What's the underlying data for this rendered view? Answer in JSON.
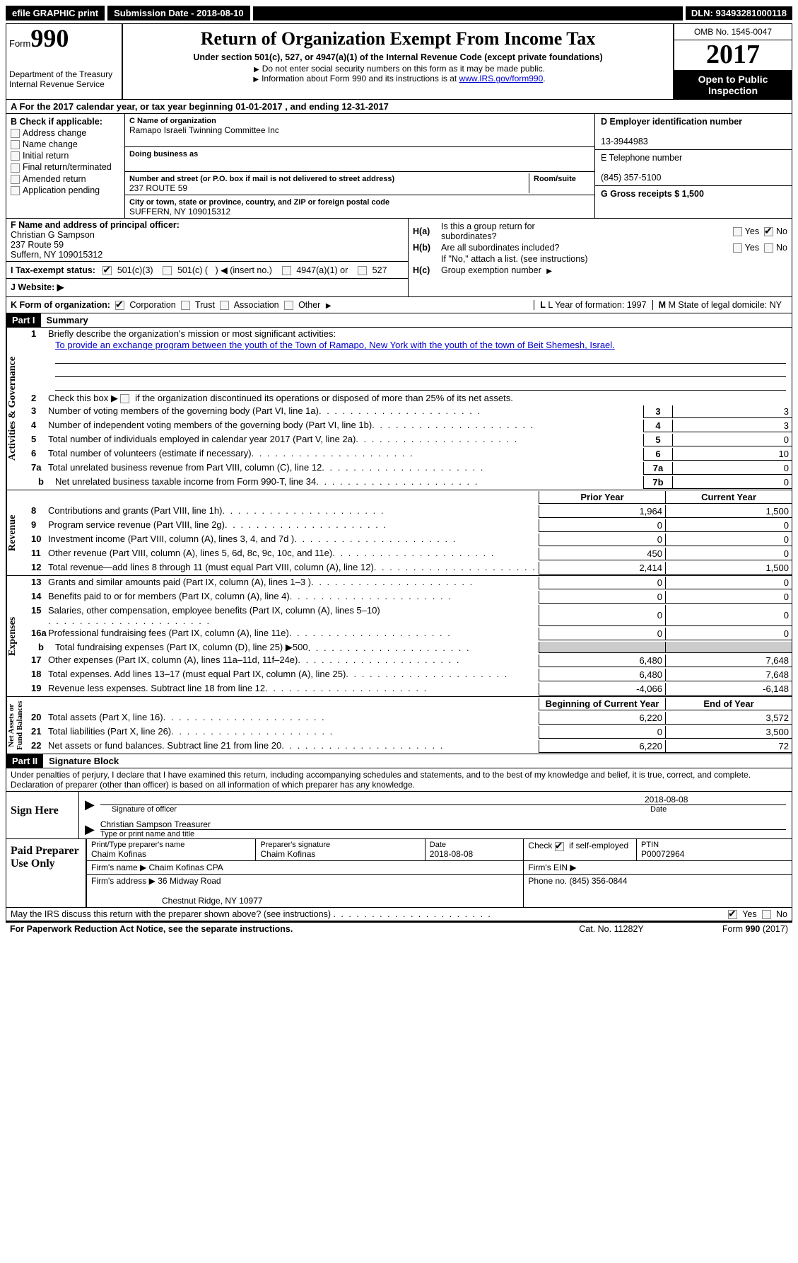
{
  "topbar": {
    "efile": "efile GRAPHIC print",
    "submission_label": "Submission Date - 2018-08-10",
    "dln": "DLN: 93493281000118"
  },
  "header": {
    "form_word": "Form",
    "form_num": "990",
    "dept1": "Department of the Treasury",
    "dept2": "Internal Revenue Service",
    "title": "Return of Organization Exempt From Income Tax",
    "sub1": "Under section 501(c), 527, or 4947(a)(1) of the Internal Revenue Code (except private foundations)",
    "sub2a": "Do not enter social security numbers on this form as it may be made public.",
    "sub2b": "Information about Form 990 and its instructions is at ",
    "link": "www.IRS.gov/form990",
    "omb": "OMB No. 1545-0047",
    "year": "2017",
    "open1": "Open to Public",
    "open2": "Inspection"
  },
  "rowA": "A  For the 2017 calendar year, or tax year beginning 01-01-2017   , and ending 12-31-2017",
  "colB": {
    "title": "B Check if applicable:",
    "opts": [
      "Address change",
      "Name change",
      "Initial return",
      "Final return/terminated",
      "Amended return",
      "Application pending"
    ]
  },
  "colC": {
    "name_lbl": "C Name of organization",
    "name": "Ramapo Israeli Twinning Committee Inc",
    "dba_lbl": "Doing business as",
    "dba": "",
    "addr_lbl": "Number and street (or P.O. box if mail is not delivered to street address)",
    "room_lbl": "Room/suite",
    "addr": "237 ROUTE 59",
    "city_lbl": "City or town, state or province, country, and ZIP or foreign postal code",
    "city": "SUFFERN, NY  109015312"
  },
  "colD": {
    "ein_lbl": "D Employer identification number",
    "ein": "13-3944983",
    "tel_lbl": "E Telephone number",
    "tel": "(845) 357-5100",
    "gross_lbl": "G Gross receipts $ 1,500"
  },
  "colF": {
    "lbl": "F Name and address of principal officer:",
    "l1": "Christian G Sampson",
    "l2": "237 Route 59",
    "l3": "Suffern, NY  109015312"
  },
  "colH": {
    "ha": "Is this a group return for",
    "ha2": "subordinates?",
    "hb": "Are all subordinates included?",
    "hb2": "If \"No,\" attach a list. (see instructions)",
    "hc": "Group exemption number"
  },
  "rowI": {
    "lbl": "I  Tax-exempt status:",
    "o1": "501(c)(3)",
    "o2": "501(c) (",
    "o2b": ") ◀ (insert no.)",
    "o3": "4947(a)(1) or",
    "o4": "527"
  },
  "rowJ": "J  Website: ▶",
  "rowK": {
    "lbl": "K Form of organization:",
    "o1": "Corporation",
    "o2": "Trust",
    "o3": "Association",
    "o4": "Other",
    "L": "L Year of formation: 1997",
    "M": "M State of legal domicile: NY"
  },
  "partI": {
    "hdr": "Part I",
    "title": "Summary",
    "l1_lbl": "Briefly describe the organization's mission or most significant activities:",
    "l1_val": "To provide an exchange program between the youth of the Town of Ramapo, New York with the youth of the town of Beit Shemesh, Israel.",
    "l2": "Check this box ▶        if the organization discontinued its operations or disposed of more than 25% of its net assets.",
    "lines_gov": [
      {
        "n": "3",
        "d": "Number of voting members of the governing body (Part VI, line 1a)",
        "box": "3",
        "v": "3"
      },
      {
        "n": "4",
        "d": "Number of independent voting members of the governing body (Part VI, line 1b)",
        "box": "4",
        "v": "3"
      },
      {
        "n": "5",
        "d": "Total number of individuals employed in calendar year 2017 (Part V, line 2a)",
        "box": "5",
        "v": "0"
      },
      {
        "n": "6",
        "d": "Total number of volunteers (estimate if necessary)",
        "box": "6",
        "v": "10"
      },
      {
        "n": "7a",
        "d": "Total unrelated business revenue from Part VIII, column (C), line 12",
        "box": "7a",
        "v": "0"
      },
      {
        "n": "b",
        "d": "Net unrelated business taxable income from Form 990-T, line 34",
        "box": "7b",
        "v": "0",
        "sub": true
      }
    ],
    "hdr_prior": "Prior Year",
    "hdr_curr": "Current Year",
    "lines_rev": [
      {
        "n": "8",
        "d": "Contributions and grants (Part VIII, line 1h)",
        "p": "1,964",
        "c": "1,500"
      },
      {
        "n": "9",
        "d": "Program service revenue (Part VIII, line 2g)",
        "p": "0",
        "c": "0"
      },
      {
        "n": "10",
        "d": "Investment income (Part VIII, column (A), lines 3, 4, and 7d )",
        "p": "0",
        "c": "0"
      },
      {
        "n": "11",
        "d": "Other revenue (Part VIII, column (A), lines 5, 6d, 8c, 9c, 10c, and 11e)",
        "p": "450",
        "c": "0"
      },
      {
        "n": "12",
        "d": "Total revenue—add lines 8 through 11 (must equal Part VIII, column (A), line 12)",
        "p": "2,414",
        "c": "1,500"
      }
    ],
    "lines_exp": [
      {
        "n": "13",
        "d": "Grants and similar amounts paid (Part IX, column (A), lines 1–3 )",
        "p": "0",
        "c": "0"
      },
      {
        "n": "14",
        "d": "Benefits paid to or for members (Part IX, column (A), line 4)",
        "p": "0",
        "c": "0"
      },
      {
        "n": "15",
        "d": "Salaries, other compensation, employee benefits (Part IX, column (A), lines 5–10)",
        "p": "0",
        "c": "0"
      },
      {
        "n": "16a",
        "d": "Professional fundraising fees (Part IX, column (A), line 11e)",
        "p": "0",
        "c": "0"
      },
      {
        "n": "b",
        "d": "Total fundraising expenses (Part IX, column (D), line 25) ▶500",
        "p": "shaded",
        "c": "shaded",
        "sub": true
      },
      {
        "n": "17",
        "d": "Other expenses (Part IX, column (A), lines 11a–11d, 11f–24e)",
        "p": "6,480",
        "c": "7,648"
      },
      {
        "n": "18",
        "d": "Total expenses. Add lines 13–17 (must equal Part IX, column (A), line 25)",
        "p": "6,480",
        "c": "7,648"
      },
      {
        "n": "19",
        "d": "Revenue less expenses. Subtract line 18 from line 12",
        "p": "-4,066",
        "c": "-6,148"
      }
    ],
    "hdr_beg": "Beginning of Current Year",
    "hdr_end": "End of Year",
    "lines_net": [
      {
        "n": "20",
        "d": "Total assets (Part X, line 16)",
        "p": "6,220",
        "c": "3,572"
      },
      {
        "n": "21",
        "d": "Total liabilities (Part X, line 26)",
        "p": "0",
        "c": "3,500"
      },
      {
        "n": "22",
        "d": "Net assets or fund balances. Subtract line 21 from line 20",
        "p": "6,220",
        "c": "72"
      }
    ]
  },
  "partII": {
    "hdr": "Part II",
    "title": "Signature Block",
    "perjury": "Under penalties of perjury, I declare that I have examined this return, including accompanying schedules and statements, and to the best of my knowledge and belief, it is true, correct, and complete. Declaration of preparer (other than officer) is based on all information of which preparer has any knowledge.",
    "sign_here": "Sign Here",
    "sig_date": "2018-08-08",
    "sig_lbl1": "Signature of officer",
    "sig_lbl1b": "Date",
    "officer": "Christian Sampson  Treasurer",
    "sig_lbl2": "Type or print name and title"
  },
  "prep": {
    "title": "Paid Preparer Use Only",
    "name_lbl": "Print/Type preparer's name",
    "name": "Chaim Kofinas",
    "sig_lbl": "Preparer's signature",
    "sig": "Chaim Kofinas",
    "date_lbl": "Date",
    "date": "2018-08-08",
    "self_lbl": "Check",
    "self2": "if self-employed",
    "ptin_lbl": "PTIN",
    "ptin": "P00072964",
    "firm_lbl": "Firm's name    ▶",
    "firm": "Chaim Kofinas CPA",
    "fein_lbl": "Firm's EIN ▶",
    "addr_lbl": "Firm's address ▶",
    "addr1": "36 Midway Road",
    "addr2": "Chestnut Ridge, NY  10977",
    "phone_lbl": "Phone no. (845) 356-0844"
  },
  "footer": {
    "discuss": "May the IRS discuss this return with the preparer shown above? (see instructions)",
    "paperwork": "For Paperwork Reduction Act Notice, see the separate instructions.",
    "cat": "Cat. No. 11282Y",
    "formno": "Form 990 (2017)"
  }
}
